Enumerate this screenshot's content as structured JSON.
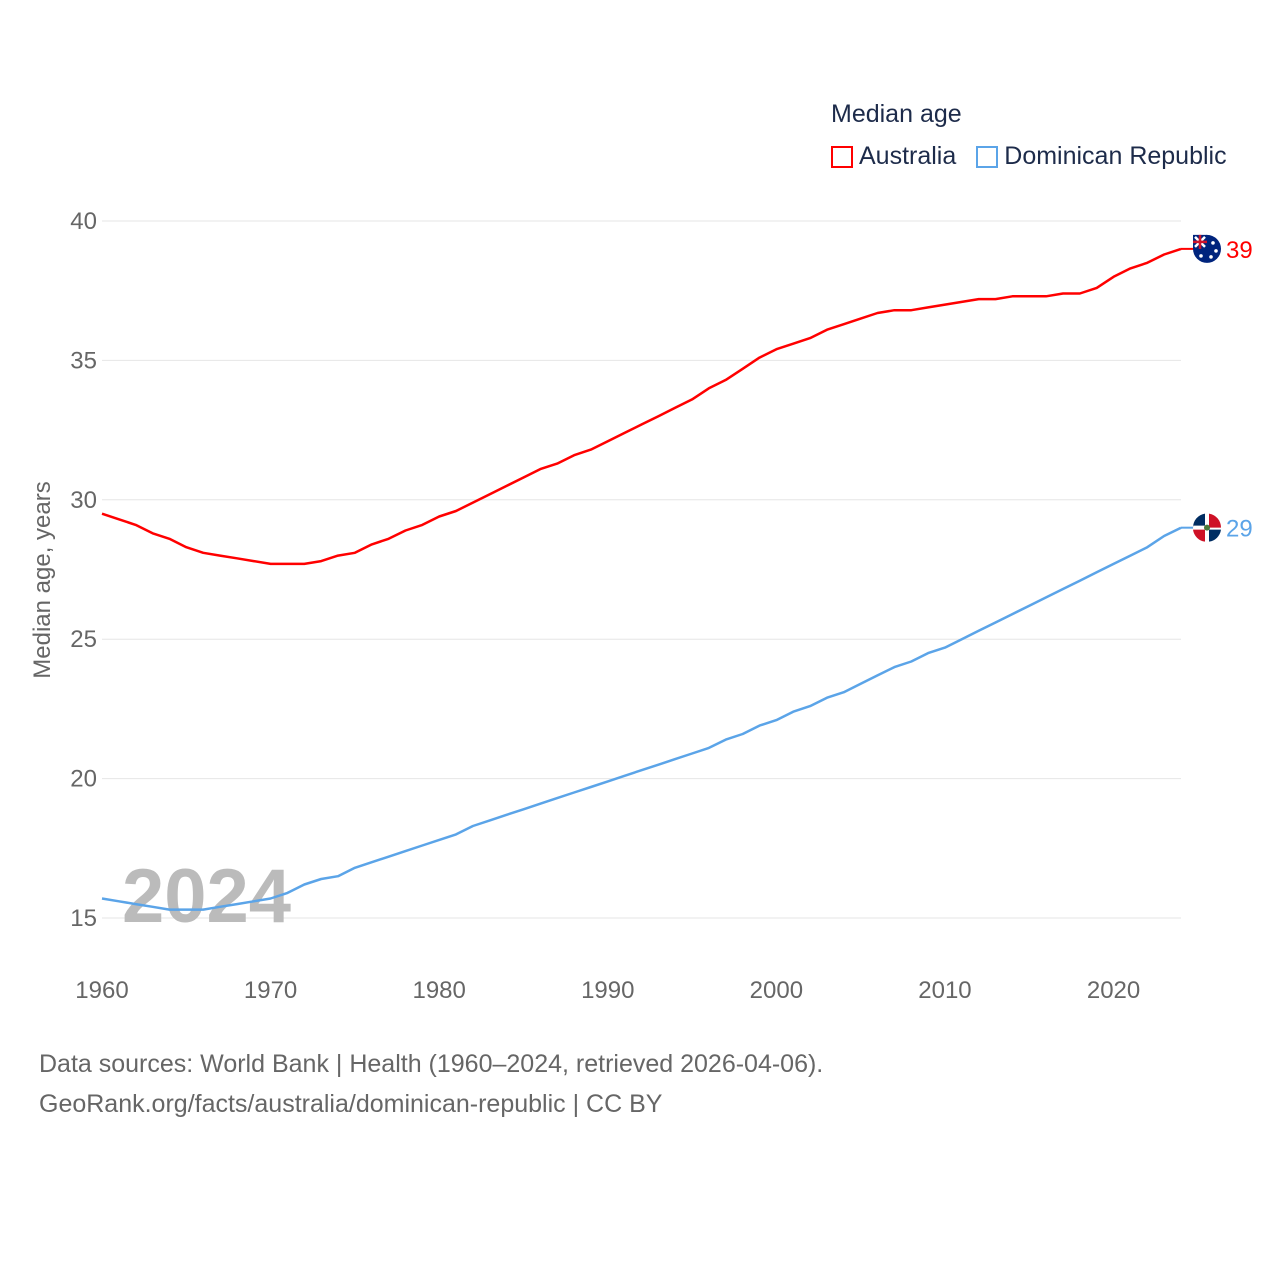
{
  "legend": {
    "title": "Median age",
    "items": [
      {
        "label": "Australia",
        "color": "#ff0000"
      },
      {
        "label": "Dominican Republic",
        "color": "#5ba4e8"
      }
    ]
  },
  "footer": {
    "line1": "Data sources: World Bank | Health (1960–2024, retrieved 2026-04-06).",
    "line2": "GeoRank.org/facts/australia/dominican-republic | CC BY"
  },
  "chart_data": {
    "type": "line",
    "title": "Median age",
    "xlabel": "",
    "ylabel": "Median age, years",
    "xlim": [
      1960,
      2024
    ],
    "ylim": [
      15,
      40
    ],
    "xticks": [
      1960,
      1970,
      1980,
      1990,
      2000,
      2010,
      2020
    ],
    "yticks": [
      15,
      20,
      25,
      30,
      35,
      40
    ],
    "grid": true,
    "legend_position": "top-right",
    "year_watermark": "2024",
    "x": [
      1960,
      1961,
      1962,
      1963,
      1964,
      1965,
      1966,
      1967,
      1968,
      1969,
      1970,
      1971,
      1972,
      1973,
      1974,
      1975,
      1976,
      1977,
      1978,
      1979,
      1980,
      1981,
      1982,
      1983,
      1984,
      1985,
      1986,
      1987,
      1988,
      1989,
      1990,
      1991,
      1992,
      1993,
      1994,
      1995,
      1996,
      1997,
      1998,
      1999,
      2000,
      2001,
      2002,
      2003,
      2004,
      2005,
      2006,
      2007,
      2008,
      2009,
      2010,
      2011,
      2012,
      2013,
      2014,
      2015,
      2016,
      2017,
      2018,
      2019,
      2020,
      2021,
      2022,
      2023,
      2024
    ],
    "series": [
      {
        "name": "Australia",
        "color": "#ff0000",
        "end_label": "39",
        "values": [
          29.5,
          29.3,
          29.1,
          28.8,
          28.6,
          28.3,
          28.1,
          28.0,
          27.9,
          27.8,
          27.7,
          27.7,
          27.7,
          27.8,
          28.0,
          28.1,
          28.4,
          28.6,
          28.9,
          29.1,
          29.4,
          29.6,
          29.9,
          30.2,
          30.5,
          30.8,
          31.1,
          31.3,
          31.6,
          31.8,
          32.1,
          32.4,
          32.7,
          33.0,
          33.3,
          33.6,
          34.0,
          34.3,
          34.7,
          35.1,
          35.4,
          35.6,
          35.8,
          36.1,
          36.3,
          36.5,
          36.7,
          36.8,
          36.8,
          36.9,
          37.0,
          37.1,
          37.2,
          37.2,
          37.3,
          37.3,
          37.3,
          37.4,
          37.4,
          37.6,
          38.0,
          38.3,
          38.5,
          38.8,
          39.0
        ]
      },
      {
        "name": "Dominican Republic",
        "color": "#5ba4e8",
        "end_label": "29",
        "values": [
          15.7,
          15.6,
          15.5,
          15.4,
          15.3,
          15.3,
          15.3,
          15.4,
          15.5,
          15.6,
          15.7,
          15.9,
          16.2,
          16.4,
          16.5,
          16.8,
          17.0,
          17.2,
          17.4,
          17.6,
          17.8,
          18.0,
          18.3,
          18.5,
          18.7,
          18.9,
          19.1,
          19.3,
          19.5,
          19.7,
          19.9,
          20.1,
          20.3,
          20.5,
          20.7,
          20.9,
          21.1,
          21.4,
          21.6,
          21.9,
          22.1,
          22.4,
          22.6,
          22.9,
          23.1,
          23.4,
          23.7,
          24.0,
          24.2,
          24.5,
          24.7,
          25.0,
          25.3,
          25.6,
          25.9,
          26.2,
          26.5,
          26.8,
          27.1,
          27.4,
          27.7,
          28.0,
          28.3,
          28.7,
          29.0
        ]
      }
    ]
  }
}
